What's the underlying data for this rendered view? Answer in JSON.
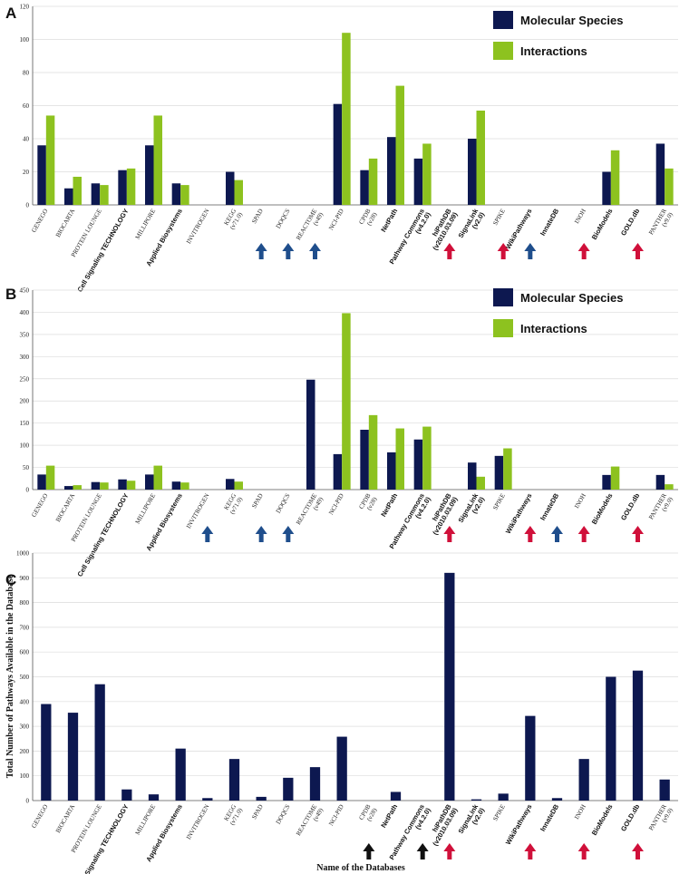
{
  "chart_data": [
    {
      "panel": "A",
      "type": "bar",
      "categories": [
        "GENEGO",
        "BIOCARTA",
        "PROTEIN LOUNGE",
        "Cell Signaling TECHNOLOGY",
        "MILLIPORE",
        "Applied Biosystems",
        "INVITROGEN",
        "KEGG (v71.0)",
        "SPAD",
        "DOQCS",
        "REACTOME (v49)",
        "NCI-PID",
        "CPDB (v28)",
        "NetPath",
        "Pathway Commons (v4.2.0)",
        "hiPathDB (v2010.03.09)",
        "SignaLink (v2.0)",
        "SPIKE",
        "WikiPathways",
        "InnateDB",
        "INOH",
        "BioModels",
        "GOLD.db",
        "PANTHER (v9.0)"
      ],
      "series": [
        {
          "name": "Molecular Species",
          "color": "#0d1850",
          "values": [
            36,
            10,
            13,
            21,
            36,
            13,
            0,
            20,
            0,
            0,
            0,
            61,
            21,
            41,
            28,
            0,
            40,
            0,
            0,
            0,
            0,
            20,
            0,
            37
          ]
        },
        {
          "name": "Interactions",
          "color": "#8dc21f",
          "values": [
            54,
            17,
            12,
            22,
            54,
            12,
            0,
            15,
            0,
            0,
            0,
            104,
            28,
            72,
            37,
            0,
            57,
            0,
            0,
            0,
            0,
            33,
            0,
            22
          ]
        }
      ],
      "ylim": [
        0,
        120
      ],
      "yticks": [
        0,
        20,
        40,
        60,
        80,
        100,
        120
      ],
      "legend": "top-right",
      "grid": true,
      "arrows": [
        {
          "category": "SPAD",
          "color": "#1f4e8c"
        },
        {
          "category": "DOQCS",
          "color": "#1f4e8c"
        },
        {
          "category": "REACTOME (v49)",
          "color": "#1f4e8c"
        },
        {
          "category": "hiPathDB (v2010.03.09)",
          "color": "#d0103a"
        },
        {
          "category": "SPIKE",
          "color": "#d0103a"
        },
        {
          "category": "WikiPathways",
          "color": "#1f4e8c"
        },
        {
          "category": "INOH",
          "color": "#d0103a"
        },
        {
          "category": "GOLD.db",
          "color": "#d0103a"
        }
      ]
    },
    {
      "panel": "B",
      "type": "bar",
      "categories": [
        "GENEGO",
        "BIOCARTA",
        "PROTEIN LOUNGE",
        "Cell Signaling TECHNOLOGY",
        "MILLIPORE",
        "Applied Biosystems",
        "INVITROGEN",
        "KEGG (v71.0)",
        "SPAD",
        "DOQCS",
        "REACTOME (v49)",
        "NCI-PID",
        "CPDB (v28)",
        "NetPath",
        "Pathway Commons (v4.2.0)",
        "hiPathDB (v2010.03.09)",
        "SignaLink (v2.0)",
        "SPIKE",
        "WikiPathways",
        "InnateDB",
        "INOH",
        "BioModels",
        "GOLD.db",
        "PANTHER (v9.0)"
      ],
      "series": [
        {
          "name": "Molecular Species",
          "color": "#0d1850",
          "values": [
            34,
            8,
            17,
            23,
            34,
            18,
            0,
            24,
            0,
            0,
            248,
            80,
            135,
            84,
            113,
            0,
            61,
            76,
            0,
            0,
            0,
            33,
            0,
            33
          ]
        },
        {
          "name": "Interactions",
          "color": "#8dc21f",
          "values": [
            54,
            10,
            16,
            20,
            54,
            16,
            0,
            18,
            0,
            0,
            0,
            398,
            168,
            138,
            142,
            0,
            29,
            93,
            0,
            0,
            0,
            52,
            0,
            12
          ]
        }
      ],
      "ylim": [
        0,
        450
      ],
      "yticks": [
        0,
        50,
        100,
        150,
        200,
        250,
        300,
        350,
        400,
        450
      ],
      "legend": "top-right",
      "grid": true,
      "arrows": [
        {
          "category": "INVITROGEN",
          "color": "#1f4e8c"
        },
        {
          "category": "SPAD",
          "color": "#1f4e8c"
        },
        {
          "category": "DOQCS",
          "color": "#1f4e8c"
        },
        {
          "category": "hiPathDB (v2010.03.09)",
          "color": "#d0103a"
        },
        {
          "category": "WikiPathways",
          "color": "#d0103a"
        },
        {
          "category": "InnateDB",
          "color": "#1f4e8c"
        },
        {
          "category": "INOH",
          "color": "#d0103a"
        },
        {
          "category": "GOLD.db",
          "color": "#d0103a"
        }
      ]
    },
    {
      "panel": "C",
      "type": "bar",
      "categories": [
        "GENEGO",
        "BIOCARTA",
        "PROTEIN LOUNGE",
        "Cell Signaling TECHNOLOGY",
        "MILLIPORE",
        "Applied Biosystems",
        "INVITROGEN",
        "KEGG (v71.0)",
        "SPAD",
        "DOQCS",
        "REACTOME (v49)",
        "NCI-PID",
        "CPDB (v28)",
        "NetPath",
        "Pathway Commons (v4.2.0)",
        "hiPathDB (v2010.03.09)",
        "SignaLink (v2.0)",
        "SPIKE",
        "WikiPathways",
        "InnateDB",
        "INOH",
        "BioModels",
        "GOLD.db",
        "PANTHER (v9.0)"
      ],
      "series": [
        {
          "name": "",
          "color": "#0d1850",
          "values": [
            390,
            355,
            470,
            45,
            25,
            210,
            10,
            168,
            15,
            92,
            135,
            258,
            0,
            35,
            0,
            920,
            5,
            28,
            342,
            10,
            168,
            500,
            525,
            85
          ]
        }
      ],
      "ylim": [
        0,
        1000
      ],
      "yticks": [
        0,
        100,
        200,
        300,
        400,
        500,
        600,
        700,
        800,
        900,
        1000
      ],
      "xlabel": "Name of the Databases",
      "ylabel": "Total Number of Pathways Available in the Database",
      "grid": true,
      "arrows": [
        {
          "category": "CPDB (v28)",
          "color": "#111111"
        },
        {
          "category": "Pathway Commons (v4.2.0)",
          "color": "#111111"
        },
        {
          "category": "hiPathDB (v2010.03.09)",
          "color": "#d0103a"
        },
        {
          "category": "WikiPathways",
          "color": "#d0103a"
        },
        {
          "category": "INOH",
          "color": "#d0103a"
        },
        {
          "category": "GOLD.db",
          "color": "#d0103a"
        }
      ]
    }
  ],
  "label_fonts": {
    "sans": [
      "Cell Signaling TECHNOLOGY",
      "Applied Biosystems",
      "NetPath",
      "Pathway Commons (v4.2.0)",
      "hiPathDB (v2010.03.09)",
      "SignaLink (v2.0)",
      "WikiPathways",
      "InnateDB",
      "BioModels",
      "GOLD.db"
    ]
  }
}
